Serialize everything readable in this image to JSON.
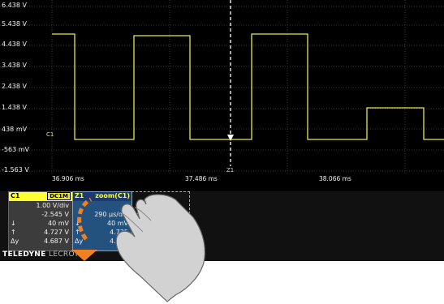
{
  "brand": {
    "bold": "TELEDYNE",
    "light": "LECROY"
  },
  "colors": {
    "trace": "#e8e84a",
    "background": "#000000",
    "accent": "#ffff33",
    "zoom_panel": "#24527f"
  },
  "y_labels": [
    "6.438 V",
    "5.438 V",
    "4.438 V",
    "3.438 V",
    "2.438 V",
    "1.438 V",
    "438 mV",
    "-563 mV",
    "-1.563 V"
  ],
  "x_labels": [
    "36.906 ms",
    "37.486 ms",
    "38.066 ms"
  ],
  "cursor": {
    "label": "Z1"
  },
  "channel_c1": {
    "name": "C1",
    "coupling": "DC1M",
    "volts_div": "1.00 V/div",
    "offset": "-2.545 V",
    "min_sym": "↓",
    "min": "40 mV",
    "max_sym": "↑",
    "max": "4.727 V",
    "delta_sym": "Δy",
    "delta": "4.687 V"
  },
  "zoom_z1": {
    "name": "Z1",
    "source": "zoom(C1)",
    "time_div": "290 µs/div",
    "min_sym": "↓",
    "min": "40 mV",
    "max_sym": "↑",
    "max": "4.735",
    "delta_sym": "Δy",
    "delta": "4.695"
  },
  "icons": {
    "hand": "hand-pointer-icon",
    "arrow": "swipe-down-arrow-icon"
  }
}
